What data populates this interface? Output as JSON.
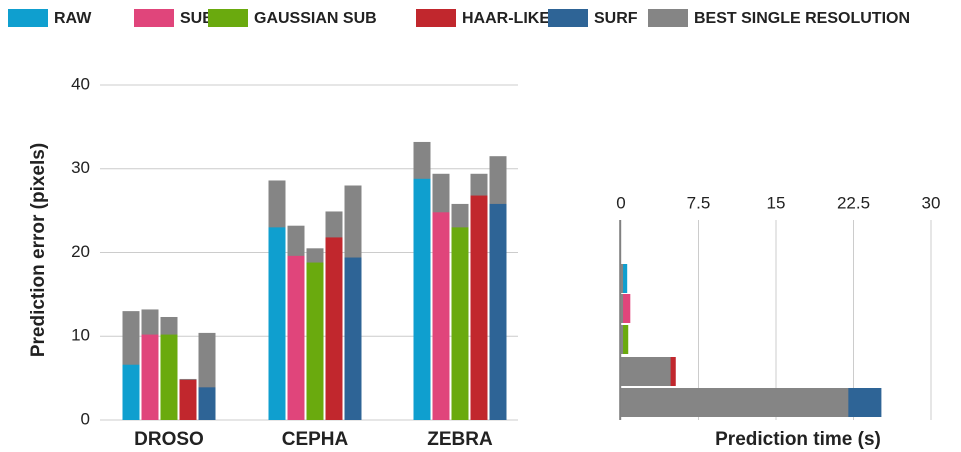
{
  "legend": [
    {
      "name": "RAW",
      "color": "#0f9fcf"
    },
    {
      "name": "SUB",
      "color": "#e0457b"
    },
    {
      "name": "GAUSSIAN SUB",
      "color": "#6aaa0e"
    },
    {
      "name": "HAAR-LIKE",
      "color": "#c1272d"
    },
    {
      "name": "SURF",
      "color": "#2e6496"
    },
    {
      "name": "BEST SINGLE RESOLUTION",
      "color": "#858585"
    }
  ],
  "chart_data": [
    {
      "type": "bar",
      "ylabel": "Prediction error (pixels)",
      "categories": [
        "DROSO",
        "CEPHA",
        "ZEBRA"
      ],
      "ylim": [
        0,
        40
      ],
      "yticks": [
        0,
        10,
        20,
        30,
        40
      ],
      "grid": true,
      "series": [
        {
          "values": [
            6.6,
            23.0,
            28.8
          ],
          "best": [
            13.0,
            28.6,
            33.2
          ]
        },
        {
          "values": [
            10.2,
            19.6,
            24.8
          ],
          "best": [
            13.2,
            23.2,
            29.4
          ]
        },
        {
          "values": [
            10.2,
            18.8,
            23.0
          ],
          "best": [
            12.3,
            20.5,
            25.8
          ]
        },
        {
          "values": [
            4.8,
            21.8,
            26.8
          ],
          "best": [
            4.9,
            24.9,
            29.4
          ]
        },
        {
          "values": [
            3.9,
            19.4,
            25.8
          ],
          "best": [
            10.4,
            28.0,
            31.5
          ]
        }
      ]
    },
    {
      "type": "barh",
      "xlabel": "Prediction time (s)",
      "xlim": [
        0,
        30
      ],
      "xticks": [
        0,
        7.5,
        15,
        22.5,
        30
      ],
      "grid": true,
      "values": [
        0.6,
        0.9,
        0.7,
        5.3,
        25.2
      ],
      "best": [
        0.2,
        0.2,
        0.2,
        4.8,
        22.0
      ]
    }
  ]
}
